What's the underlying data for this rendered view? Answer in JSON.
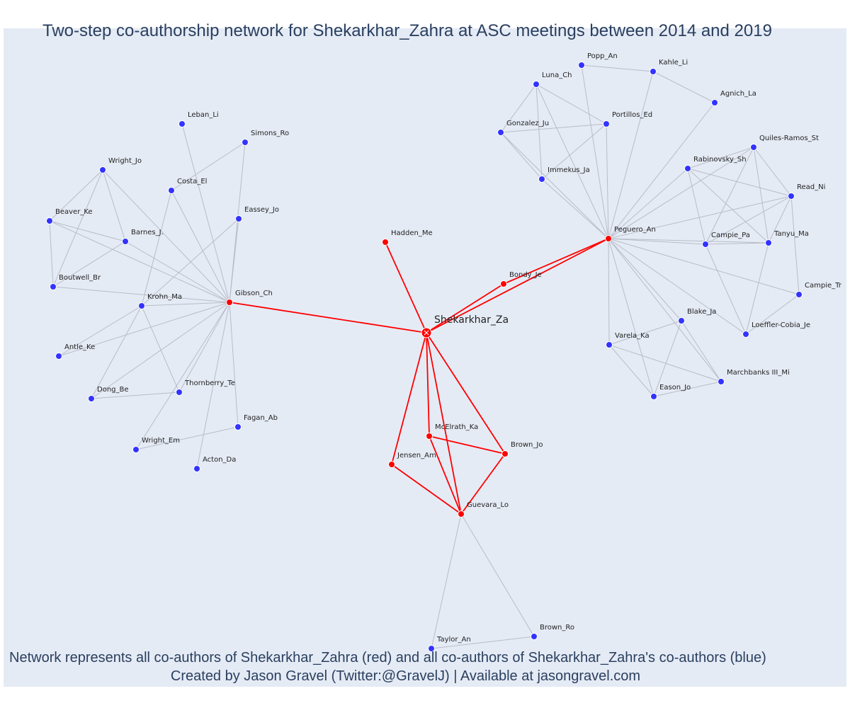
{
  "title": "Two-step co-authorship network for Shekarkhar_Zahra at ASC meetings between 2014 and 2019",
  "footer": {
    "line1": "Network represents all co-authors of Shekarkhar_Zahra (red) and all co-authors of Shekarkhar_Zahra's co-authors (blue)",
    "line2": "Created by Jason Gravel (Twitter:@GravelJ) | Available at jasongravel.com"
  },
  "colors": {
    "background": "#e5ebf5",
    "direct": "#ff0000",
    "indirect": "#3333ff",
    "edge": "#b8bcc8",
    "text": "#2a3f5f"
  },
  "network": {
    "center": "Shekarkhar_Za",
    "direct_coauthors": [
      "Hadden_Me",
      "Bondy_Je",
      "Gibson_Ch",
      "Peguero_An",
      "McElrath_Ka",
      "Brown_Jo",
      "Jensen_Am",
      "Guevara_Lo"
    ],
    "second_step_coauthors": [
      "Leban_Li",
      "Simons_Ro",
      "Wright_Jo",
      "Costa_El",
      "Eassey_Jo",
      "Beaver_Ke",
      "Barnes_J.",
      "Boutwell_Br",
      "Krohn_Ma",
      "Antle_Ke",
      "Dong_Be",
      "Thornberry_Te",
      "Fagan_Ab",
      "Wright_Em",
      "Acton_Da",
      "Popp_An",
      "Kahle_Li",
      "Luna_Ch",
      "Agnich_La",
      "Portillos_Ed",
      "Gonzalez_Ju",
      "Quiles-Ramos_St",
      "Rabinovsky_Sh",
      "Immekus_Ja",
      "Read_Ni",
      "Campie_Pa",
      "Tanyu_Ma",
      "Campie_Tr",
      "Blake_Ja",
      "Loeffler-Cobia_Je",
      "Varela_Ka",
      "Marchbanks III_Mi",
      "Eason_Jo",
      "Brown_Ro",
      "Taylor_An"
    ]
  }
}
